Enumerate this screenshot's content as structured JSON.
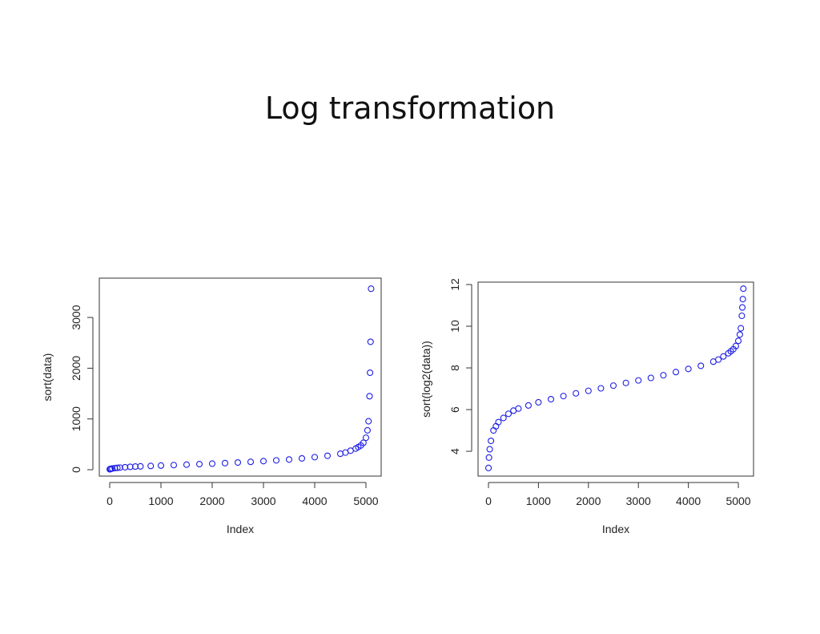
{
  "title": "Log transformation",
  "chart_data": [
    {
      "type": "scatter",
      "xlabel": "Index",
      "ylabel": "sort(data)",
      "color": "#1f1fe6",
      "x": [
        1,
        10,
        25,
        50,
        100,
        150,
        200,
        300,
        400,
        500,
        600,
        800,
        1000,
        1250,
        1500,
        1750,
        2000,
        2250,
        2500,
        2750,
        3000,
        3250,
        3500,
        3750,
        4000,
        4250,
        4500,
        4600,
        4700,
        4800,
        4850,
        4900,
        4950,
        5000,
        5030,
        5050,
        5070,
        5080,
        5090,
        5100
      ],
      "values": [
        9,
        13,
        17,
        23,
        32,
        37,
        42,
        49,
        56,
        62,
        66,
        74,
        82,
        91,
        100,
        110,
        119,
        130,
        142,
        155,
        169,
        184,
        201,
        223,
        247,
        274,
        315,
        338,
        375,
        416,
        446,
        478,
        530,
        630,
        776,
        955,
        1448,
        1911,
        2521,
        3566
      ],
      "xlim": [
        -203,
        5297
      ],
      "ylim": [
        -126,
        3775
      ],
      "xticks": [
        0,
        1000,
        2000,
        3000,
        4000,
        5000
      ],
      "yticks": [
        0,
        1000,
        2000,
        3000
      ]
    },
    {
      "type": "scatter",
      "xlabel": "Index",
      "ylabel": "sort(log2(data))",
      "color": "#1f1fe6",
      "x": [
        1,
        10,
        25,
        50,
        100,
        150,
        200,
        300,
        400,
        500,
        600,
        800,
        1000,
        1250,
        1500,
        1750,
        2000,
        2250,
        2500,
        2750,
        3000,
        3250,
        3500,
        3750,
        4000,
        4250,
        4500,
        4600,
        4700,
        4800,
        4850,
        4900,
        4950,
        5000,
        5030,
        5050,
        5070,
        5080,
        5090,
        5100
      ],
      "values": [
        3.2,
        3.7,
        4.1,
        4.5,
        5.0,
        5.2,
        5.4,
        5.6,
        5.8,
        5.95,
        6.05,
        6.2,
        6.35,
        6.5,
        6.65,
        6.78,
        6.9,
        7.02,
        7.15,
        7.28,
        7.4,
        7.52,
        7.65,
        7.8,
        7.95,
        8.1,
        8.3,
        8.4,
        8.55,
        8.7,
        8.8,
        8.9,
        9.05,
        9.3,
        9.6,
        9.9,
        10.5,
        10.9,
        11.3,
        11.8
      ],
      "xlim": [
        -208,
        5304
      ],
      "ylim": [
        2.81,
        12.115
      ],
      "xticks": [
        0,
        1000,
        2000,
        3000,
        4000,
        5000
      ],
      "yticks": [
        4,
        6,
        8,
        10,
        12
      ]
    }
  ]
}
